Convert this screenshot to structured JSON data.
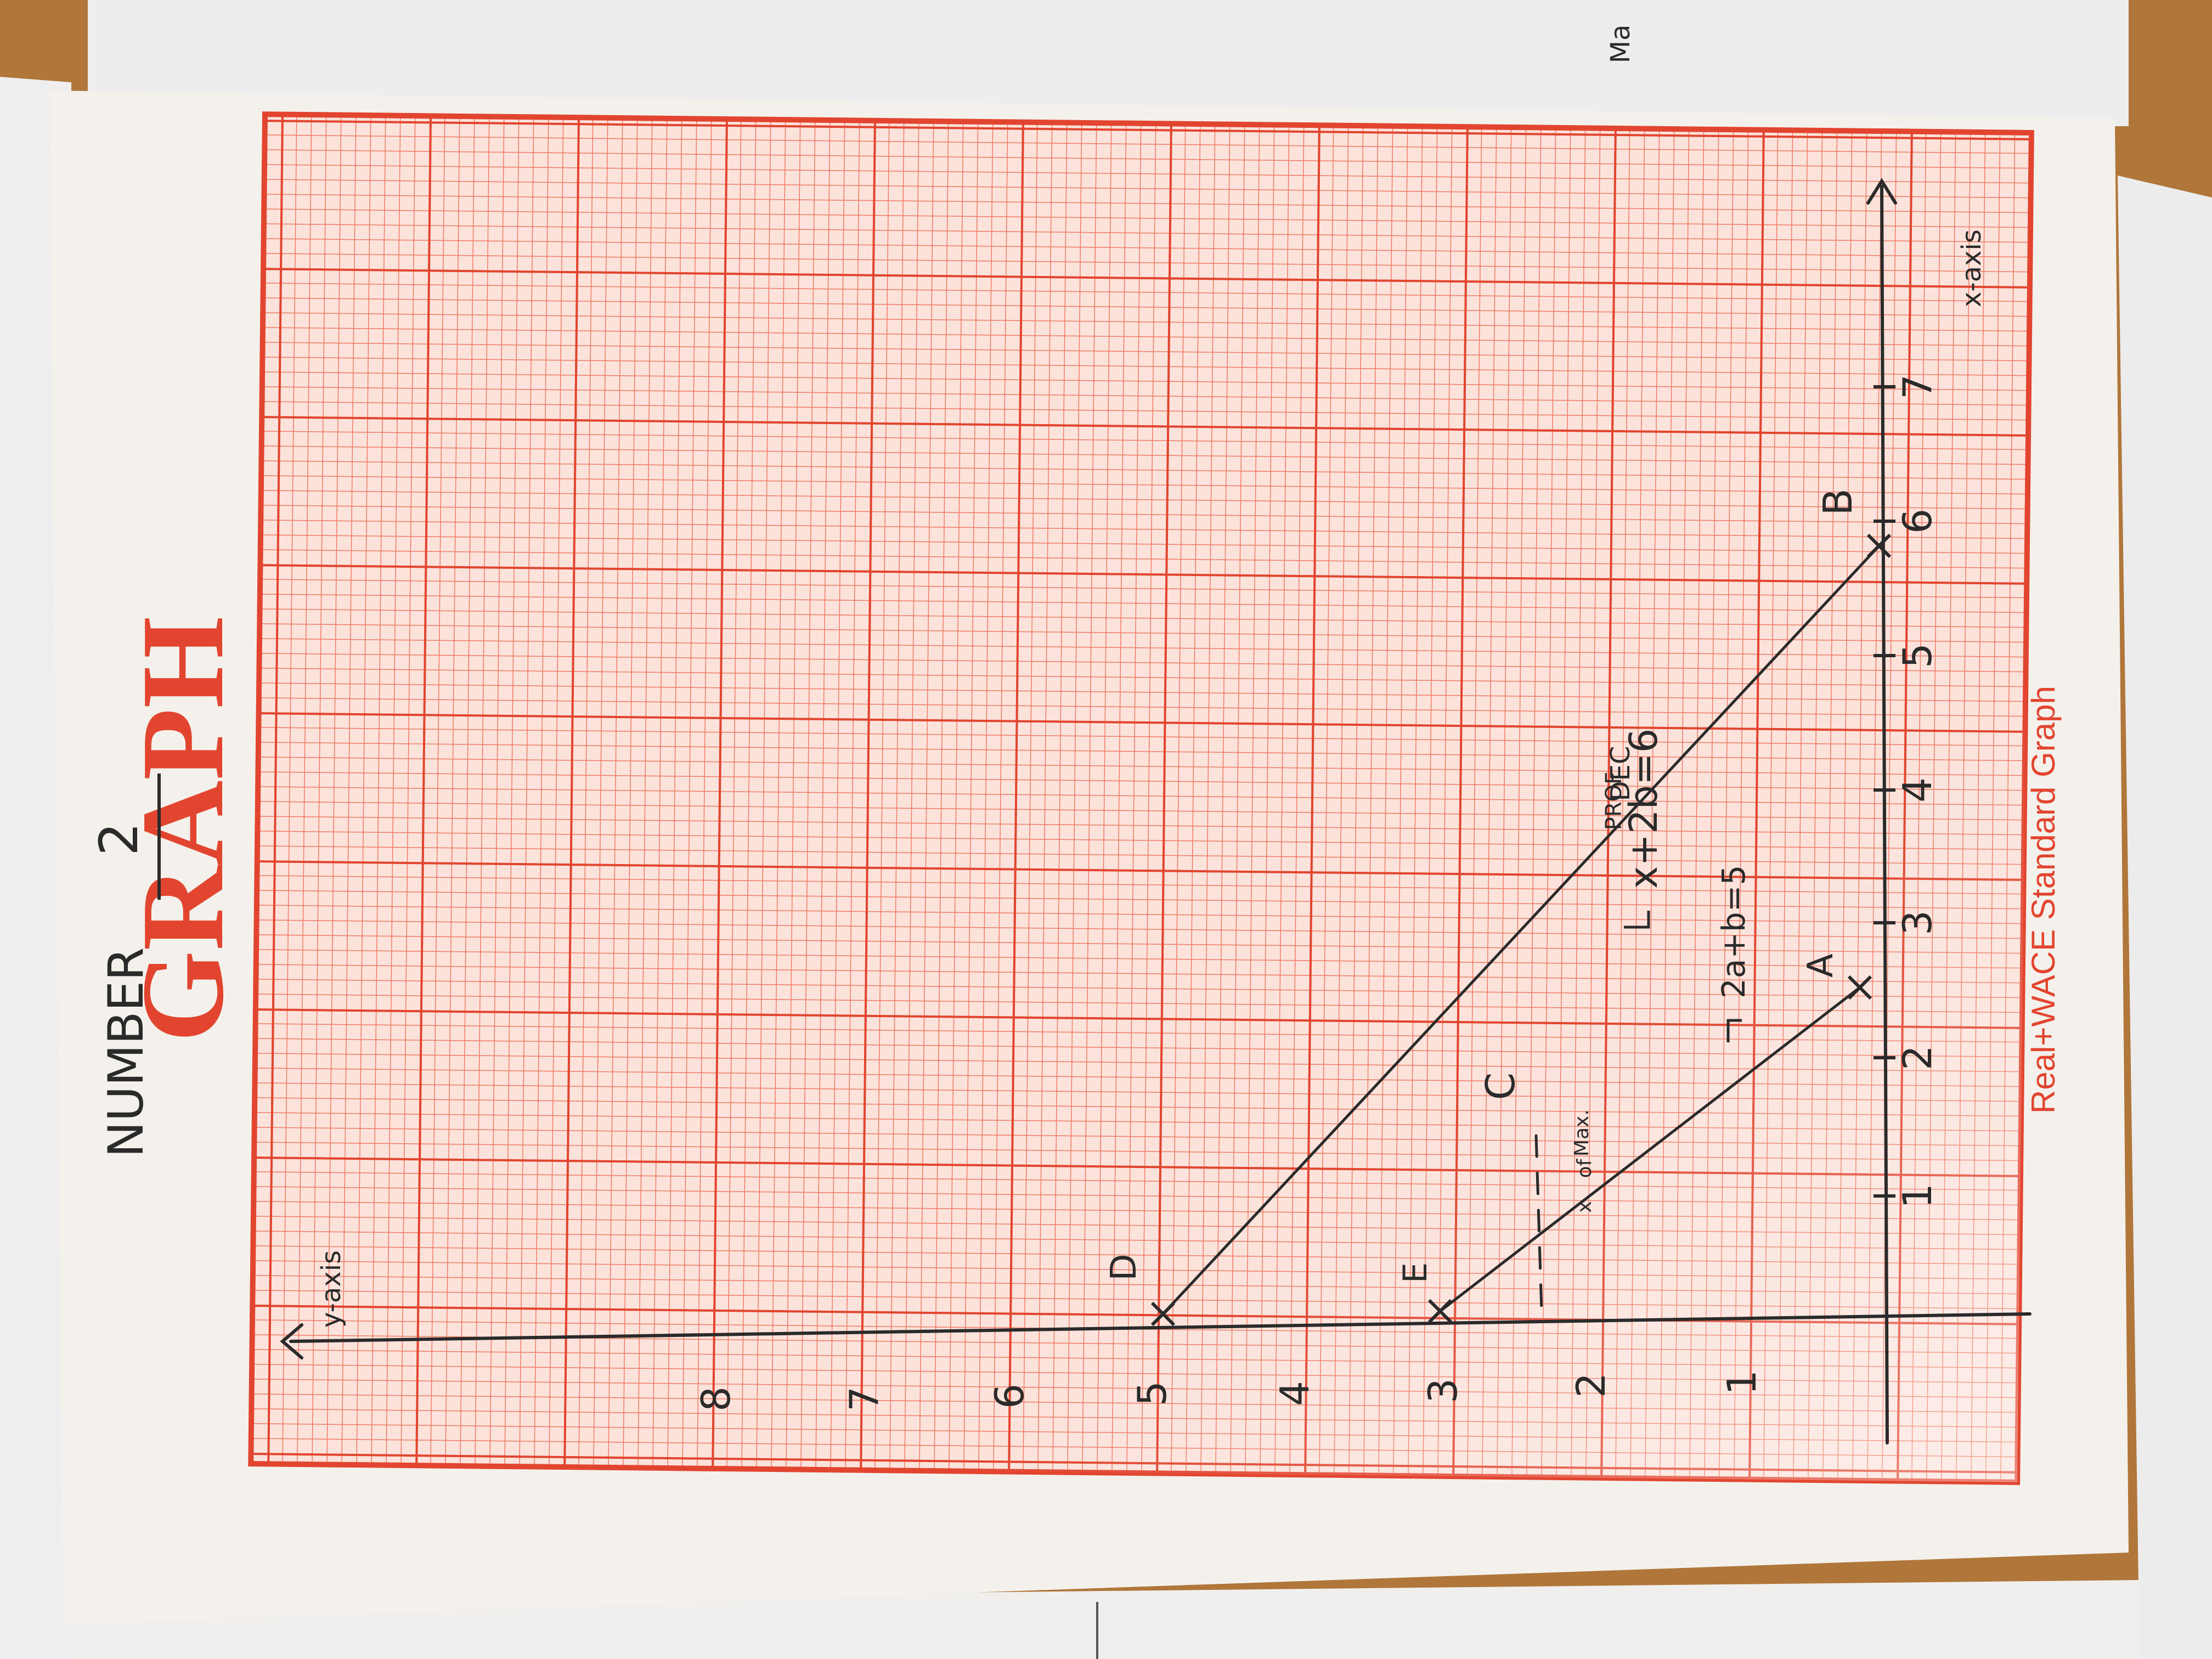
{
  "sheet": {
    "number_label": "NUMBER",
    "number_value": "2",
    "brand_title": "GRAPH",
    "footer_brand": "Real+WACE Standard Graph",
    "colors": {
      "grid": "#e8553f",
      "paper": "#f4f1ec",
      "ink": "#2a2a2a",
      "table": "#b0763a"
    }
  },
  "handwriting": {
    "y_axis_label": "y-axis",
    "x_axis_label": "x-axis",
    "y_ticks": [
      "1",
      "2",
      "3",
      "4",
      "5",
      "6",
      "7",
      "8"
    ],
    "x_ticks": [
      "1",
      "2",
      "3",
      "4",
      "5",
      "6",
      "7"
    ],
    "equation_1": "x+2b=6",
    "equation_2": "2a+b=5",
    "point_labels": [
      "A",
      "B",
      "C",
      "D",
      "E"
    ]
  },
  "left_edge_scraps": [
    "Ma",
    "DEC",
    "PROF",
    "Max.",
    "of",
    "x"
  ]
}
